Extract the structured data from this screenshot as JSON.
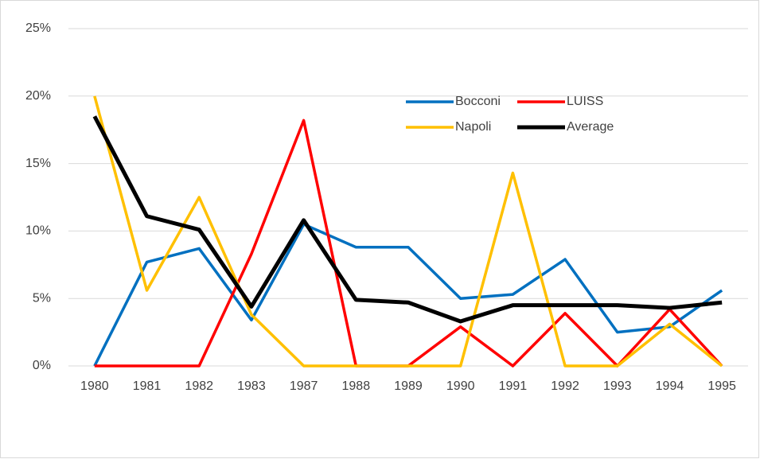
{
  "chart_data": {
    "type": "line",
    "categories": [
      "1980",
      "1981",
      "1982",
      "1983",
      "1987",
      "1988",
      "1989",
      "1990",
      "1991",
      "1992",
      "1993",
      "1994",
      "1995"
    ],
    "series": [
      {
        "name": "Bocconi",
        "color": "#0070c0",
        "values": [
          0,
          7.7,
          8.7,
          3.4,
          10.5,
          8.8,
          8.8,
          5.0,
          5.3,
          7.9,
          2.5,
          2.9,
          5.6
        ]
      },
      {
        "name": "LUISS",
        "color": "#ff0000",
        "values": [
          0,
          0,
          0,
          8.3,
          18.2,
          0,
          0,
          2.9,
          0,
          3.9,
          0,
          4.2,
          0
        ]
      },
      {
        "name": "Napoli",
        "color": "#ffc000",
        "values": [
          20,
          5.6,
          12.5,
          3.8,
          0,
          0,
          0,
          0,
          14.3,
          0,
          0,
          3.1,
          0
        ]
      },
      {
        "name": "Average",
        "color": "#000000",
        "values": [
          18.5,
          11.1,
          10.1,
          4.4,
          10.8,
          4.9,
          4.7,
          3.3,
          4.5,
          4.5,
          4.5,
          4.3,
          4.7
        ]
      }
    ],
    "ylim": [
      0,
      25
    ],
    "yticks": [
      {
        "value": 0,
        "label": "0%"
      },
      {
        "value": 5,
        "label": "5%"
      },
      {
        "value": 10,
        "label": "10%"
      },
      {
        "value": 15,
        "label": "15%"
      },
      {
        "value": 20,
        "label": "20%"
      },
      {
        "value": 25,
        "label": "25%"
      }
    ],
    "grid": true
  }
}
